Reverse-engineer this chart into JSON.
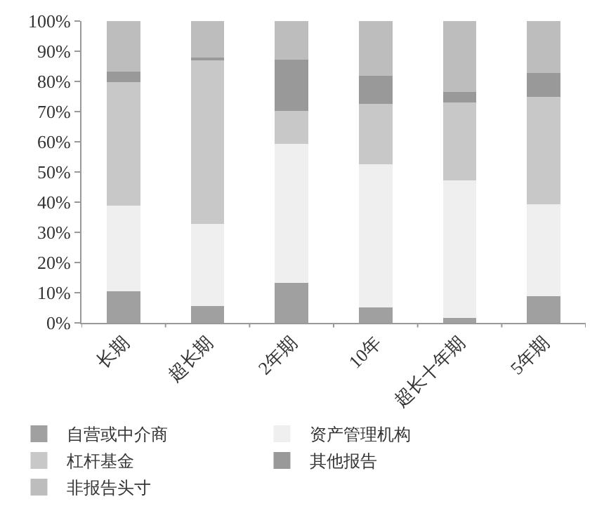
{
  "chart_data": {
    "type": "bar",
    "stacked": true,
    "categories": [
      "长期",
      "超长期",
      "2年期",
      "10年",
      "超长十年期",
      "5年期"
    ],
    "series": [
      {
        "name": "自营或中介商",
        "color": "#a0a0a0",
        "values": [
          10.4,
          5.6,
          13.2,
          5.2,
          1.7,
          8.8
        ]
      },
      {
        "name": "资产管理机构",
        "color": "#efefef",
        "values": [
          28.5,
          27.1,
          46.0,
          47.3,
          45.4,
          30.5
        ]
      },
      {
        "name": "杠杆基金",
        "color": "#c8c8c8",
        "values": [
          40.9,
          54.6,
          11.0,
          20.0,
          25.9,
          35.6
        ]
      },
      {
        "name": "其他报告",
        "color": "#999999",
        "values": [
          3.4,
          0.6,
          16.9,
          9.3,
          3.4,
          8.0
        ]
      },
      {
        "name": "非报告头寸",
        "color": "#bdbdbd",
        "values": [
          16.8,
          12.1,
          12.9,
          18.2,
          23.6,
          17.1
        ]
      }
    ],
    "ylim": [
      0,
      100
    ],
    "yticks": [
      {
        "value": 0,
        "label": "0%"
      },
      {
        "value": 10,
        "label": "10%"
      },
      {
        "value": 20,
        "label": "20%"
      },
      {
        "value": 30,
        "label": "30%"
      },
      {
        "value": 40,
        "label": "40%"
      },
      {
        "value": 50,
        "label": "50%"
      },
      {
        "value": 60,
        "label": "60%"
      },
      {
        "value": 70,
        "label": "70%"
      },
      {
        "value": 80,
        "label": "80%"
      },
      {
        "value": 90,
        "label": "90%"
      },
      {
        "value": 100,
        "label": "100%"
      }
    ],
    "legend": "bottom"
  }
}
